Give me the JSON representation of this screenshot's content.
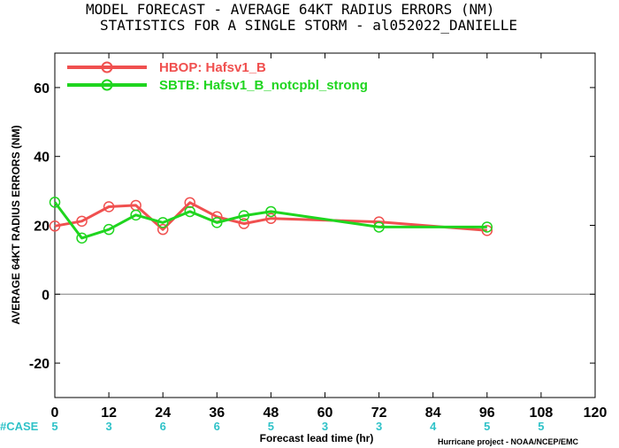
{
  "title_line1": "MODEL FORECAST - AVERAGE 64KT RADIUS ERRORS (NM)",
  "title_line2": "STATISTICS FOR A SINGLE STORM - al052022_DANIELLE",
  "credit": "Hurricane project - NOAA/NCEP/EMC",
  "colors": {
    "hbop": "#f0504f",
    "sbtb": "#1fd51f",
    "case": "#2fc2c8",
    "zero_line": "#7f7f7f"
  },
  "chart_data": {
    "type": "line",
    "ylabel": "AVERAGE 64KT RADIUS ERRORS (NM)",
    "xlabel": "Forecast lead time (hr)",
    "xlim": [
      0,
      120
    ],
    "ylim": [
      -30,
      70
    ],
    "x_ticks": [
      "0",
      "12",
      "24",
      "36",
      "48",
      "60",
      "72",
      "84",
      "96",
      "108",
      "120"
    ],
    "y_ticks": [
      "60",
      "40",
      "20",
      "0",
      "-20"
    ],
    "series": [
      {
        "name": "HBOP: Hafsv1_B",
        "x": [
          0,
          6,
          12,
          18,
          24,
          30,
          36,
          42,
          48,
          72,
          96
        ],
        "y": [
          19.8,
          21.2,
          25.4,
          25.8,
          18.8,
          26.6,
          22.5,
          20.5,
          22.0,
          21.0,
          18.5
        ]
      },
      {
        "name": "SBTB: Hafsv1_B_notcpbl_strong",
        "x": [
          0,
          6,
          12,
          18,
          24,
          30,
          36,
          42,
          48,
          72,
          96
        ],
        "y": [
          26.7,
          16.3,
          18.8,
          23.0,
          20.8,
          24.0,
          20.8,
          22.8,
          24.0,
          19.5,
          19.5
        ]
      }
    ],
    "cases": {
      "label": "#CASE",
      "x": [
        0,
        12,
        24,
        36,
        48,
        60,
        72,
        84,
        96,
        108
      ],
      "values": [
        "5",
        "3",
        "6",
        "6",
        "5",
        "3",
        "3",
        "4",
        "5",
        "5"
      ]
    },
    "legend": "top-left",
    "grid": false
  }
}
